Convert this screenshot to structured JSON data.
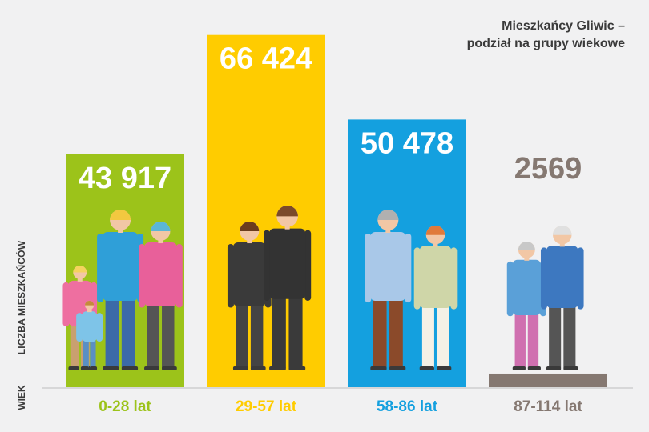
{
  "chart_data": {
    "type": "bar",
    "title_lines": [
      "Mieszkańcy Gliwic –",
      "podział na grupy wiekowe"
    ],
    "ylabel": "LICZBA MIESZKAŃCÓW",
    "xlabel": "WIEK",
    "categories": [
      "0-28 lat",
      "29-57 lat",
      "58-86 lat",
      "87-114 lat"
    ],
    "values": [
      43917,
      66424,
      50478,
      2569
    ],
    "value_labels": [
      "43 917",
      "66 424",
      "50 478",
      "2569"
    ],
    "colors": [
      "#9cc31a",
      "#ffcc00",
      "#14a0df",
      "#857871"
    ],
    "ylim": [
      0,
      70000
    ],
    "grid": false,
    "legend": "none"
  }
}
